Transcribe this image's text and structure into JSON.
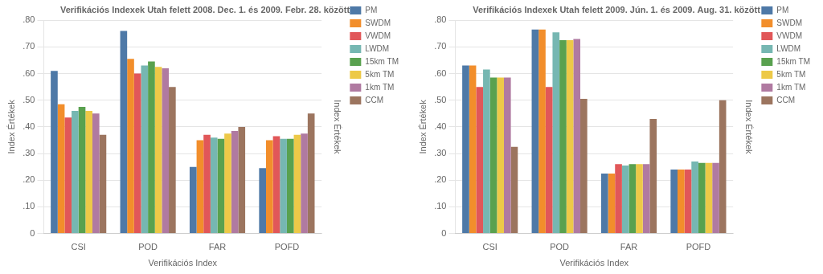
{
  "chart_data": [
    {
      "type": "bar",
      "title": "Verifikációs Indexek Utah felett 2008. Dec. 1. és 2009. Febr. 28. között",
      "xlabel": "Verifikációs Index",
      "ylabel": "Index Értékek",
      "y2label": "Index Értékek",
      "categories": [
        "CSI",
        "POD",
        "FAR",
        "POFD"
      ],
      "series": [
        {
          "name": "PM",
          "color": "#4e79a7",
          "values": [
            0.61,
            0.76,
            0.25,
            0.245
          ]
        },
        {
          "name": "SWDM",
          "color": "#f28e2b",
          "values": [
            0.485,
            0.655,
            0.35,
            0.35
          ]
        },
        {
          "name": "VWDM",
          "color": "#e15759",
          "values": [
            0.435,
            0.6,
            0.37,
            0.365
          ]
        },
        {
          "name": "LWDM",
          "color": "#76b7b2",
          "values": [
            0.46,
            0.63,
            0.36,
            0.355
          ]
        },
        {
          "name": "15km TM",
          "color": "#59a14f",
          "values": [
            0.475,
            0.645,
            0.355,
            0.355
          ]
        },
        {
          "name": "5km TM",
          "color": "#edc948",
          "values": [
            0.46,
            0.625,
            0.375,
            0.37
          ]
        },
        {
          "name": "1km TM",
          "color": "#b07aa1",
          "values": [
            0.45,
            0.62,
            0.385,
            0.375
          ]
        },
        {
          "name": "CCM",
          "color": "#9c755f",
          "values": [
            0.37,
            0.55,
            0.4,
            0.45
          ]
        }
      ],
      "ylim": [
        0,
        0.8
      ],
      "yticks": [
        0,
        {
          "value": 0.1,
          "label": ".10"
        },
        {
          "value": 0.2,
          "label": ".20"
        },
        {
          "value": 0.3,
          "label": ".30"
        },
        {
          "value": 0.4,
          "label": ".40"
        },
        {
          "value": 0.5,
          "label": ".50"
        },
        {
          "value": 0.6,
          "label": ".60"
        },
        {
          "value": 0.7,
          "label": ".70"
        },
        {
          "value": 0.8,
          "label": ".80"
        }
      ],
      "grid": true,
      "legend": "right"
    },
    {
      "type": "bar",
      "title": "Verifikációs Indexek Utah felett 2009. Jún. 1. és 2009. Aug. 31. között",
      "xlabel": "Verifikációs Index",
      "ylabel": "Index Értékek",
      "y2label": "Index Értékek",
      "categories": [
        "CSI",
        "POD",
        "FAR",
        "POFD"
      ],
      "series": [
        {
          "name": "PM",
          "color": "#4e79a7",
          "values": [
            0.63,
            0.765,
            0.225,
            0.24
          ]
        },
        {
          "name": "SWDM",
          "color": "#f28e2b",
          "values": [
            0.63,
            0.765,
            0.225,
            0.24
          ]
        },
        {
          "name": "VWDM",
          "color": "#e15759",
          "values": [
            0.55,
            0.55,
            0.26,
            0.24
          ]
        },
        {
          "name": "LWDM",
          "color": "#76b7b2",
          "values": [
            0.615,
            0.755,
            0.255,
            0.27
          ]
        },
        {
          "name": "15km TM",
          "color": "#59a14f",
          "values": [
            0.585,
            0.725,
            0.26,
            0.265
          ]
        },
        {
          "name": "5km TM",
          "color": "#edc948",
          "values": [
            0.585,
            0.725,
            0.26,
            0.265
          ]
        },
        {
          "name": "1km TM",
          "color": "#b07aa1",
          "values": [
            0.585,
            0.73,
            0.26,
            0.265
          ]
        },
        {
          "name": "CCM",
          "color": "#9c755f",
          "values": [
            0.325,
            0.505,
            0.43,
            0.5
          ]
        }
      ],
      "ylim": [
        0,
        0.8
      ],
      "yticks": [
        0,
        {
          "value": 0.1,
          "label": ".10"
        },
        {
          "value": 0.2,
          "label": ".20"
        },
        {
          "value": 0.3,
          "label": ".30"
        },
        {
          "value": 0.4,
          "label": ".40"
        },
        {
          "value": 0.5,
          "label": ".50"
        },
        {
          "value": 0.6,
          "label": ".60"
        },
        {
          "value": 0.7,
          "label": ".70"
        },
        {
          "value": 0.8,
          "label": ".80"
        }
      ],
      "grid": true,
      "legend": "right"
    }
  ]
}
